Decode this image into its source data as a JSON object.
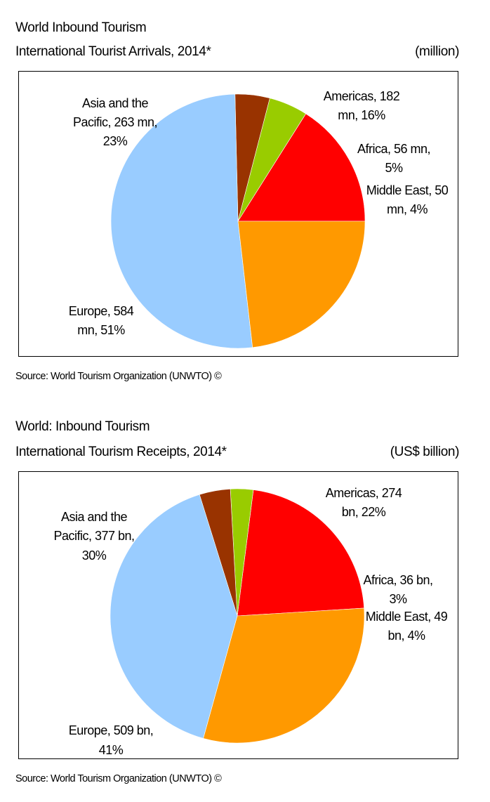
{
  "chart_data": [
    {
      "type": "pie",
      "title": "World Inbound Tourism",
      "subtitle": "International Tourist Arrivals, 2014*",
      "unit": "(million)",
      "source": "Source: World Tourism Organization (UNWTO) ©",
      "slices": [
        {
          "name": "Americas",
          "value": 182,
          "percent": 16,
          "color": "#ff0000",
          "label_lines": [
            "Americas, 182",
            "mn, 16%"
          ]
        },
        {
          "name": "Africa",
          "value": 56,
          "percent": 5,
          "color": "#99cc00",
          "label_lines": [
            "Africa, 56 mn,",
            "5%"
          ]
        },
        {
          "name": "Middle East",
          "value": 50,
          "percent": 4,
          "color": "#993300",
          "label_lines": [
            "Middle East, 50",
            "mn, 4%"
          ]
        },
        {
          "name": "Europe",
          "value": 584,
          "percent": 51,
          "color": "#99ccff",
          "label_lines": [
            "Europe, 584",
            "mn, 51%"
          ]
        },
        {
          "name": "Asia and the Pacific",
          "value": 263,
          "percent": 23,
          "color": "#ff9900",
          "label_lines": [
            "Asia and the",
            "Pacific, 263 mn,",
            "23%"
          ]
        }
      ]
    },
    {
      "type": "pie",
      "title": "World: Inbound Tourism",
      "subtitle": "International Tourism Receipts, 2014*",
      "unit": "(US$ billion)",
      "source": "Source: World Tourism Organization (UNWTO) ©",
      "slices": [
        {
          "name": "Americas",
          "value": 274,
          "percent": 22,
          "color": "#ff0000",
          "label_lines": [
            "Americas, 274",
            "bn, 22%"
          ]
        },
        {
          "name": "Africa",
          "value": 36,
          "percent": 3,
          "color": "#99cc00",
          "label_lines": [
            "Africa, 36 bn,",
            "3%"
          ]
        },
        {
          "name": "Middle East",
          "value": 49,
          "percent": 4,
          "color": "#993300",
          "label_lines": [
            "Middle East, 49",
            "bn, 4%"
          ]
        },
        {
          "name": "Europe",
          "value": 509,
          "percent": 41,
          "color": "#99ccff",
          "label_lines": [
            "Europe, 509 bn,",
            "41%"
          ]
        },
        {
          "name": "Asia and the Pacific",
          "value": 377,
          "percent": 30,
          "color": "#ff9900",
          "label_lines": [
            "Asia and the",
            "Pacific, 377 bn,",
            "30%"
          ]
        }
      ]
    }
  ]
}
